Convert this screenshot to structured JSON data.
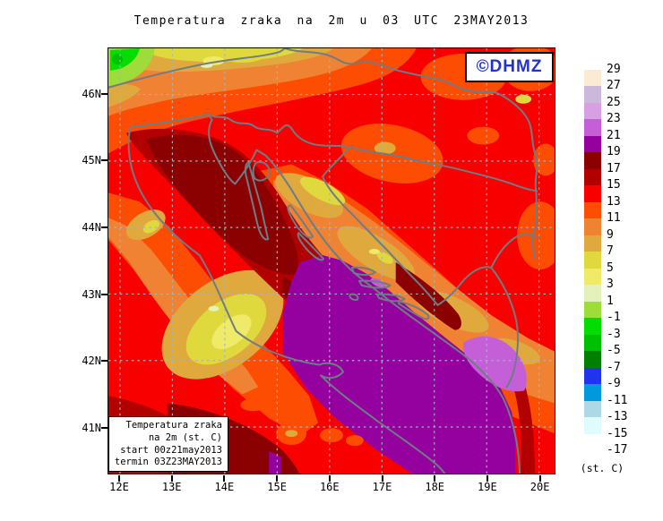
{
  "title": "Temperatura zraka na 2m u 03 UTC 23MAY2013",
  "copyright_badge": {
    "text": "©DHMZ",
    "text_color": "#2233cc"
  },
  "info_box": {
    "lines": [
      "Temperatura zraka",
      "na 2m (st. C)",
      "start 00z21may2013",
      "termin 03Z23MAY2013"
    ]
  },
  "axes": {
    "lat_tick_labels": [
      "46N",
      "45N",
      "44N",
      "43N",
      "42N",
      "41N"
    ],
    "lon_tick_labels": [
      "12E",
      "13E",
      "14E",
      "15E",
      "16E",
      "17E",
      "18E",
      "19E",
      "20E"
    ]
  },
  "legend": {
    "unit": "(st. C)",
    "entries": [
      {
        "label": "29",
        "box_color": "#fcebd4"
      },
      {
        "label": "27",
        "box_color": "#ccb8da"
      },
      {
        "label": "25",
        "box_color": "#d7a0e2"
      },
      {
        "label": "23",
        "box_color": "#c45fd8"
      },
      {
        "label": "21",
        "box_color": "#94019e"
      },
      {
        "label": "19",
        "box_color": "#8b0000"
      },
      {
        "label": "17",
        "box_color": "#b20000"
      },
      {
        "label": "15",
        "box_color": "#f80000"
      },
      {
        "label": "13",
        "box_color": "#fd4d02"
      },
      {
        "label": "11",
        "box_color": "#f08233"
      },
      {
        "label": "9",
        "box_color": "#dfa93d"
      },
      {
        "label": "7",
        "box_color": "#e0d93e"
      },
      {
        "label": "5",
        "box_color": "#efea67"
      },
      {
        "label": "3",
        "box_color": "#e4f1bb"
      },
      {
        "label": "1",
        "box_color": "#9edc3c"
      },
      {
        "label": "-1",
        "box_color": "#04dd04"
      },
      {
        "label": "-3",
        "box_color": "#00c004"
      },
      {
        "label": "-5",
        "box_color": "#008000"
      },
      {
        "label": "-7",
        "box_color": "#2233ee"
      },
      {
        "label": "-9",
        "box_color": "#0099dd"
      },
      {
        "label": "-11",
        "box_color": "#add8e6"
      },
      {
        "label": "-13",
        "box_color": "#e0fbfb"
      },
      {
        "label": "-15",
        "box_color": "#ffffff"
      },
      {
        "label": "-17",
        "box_color": null
      }
    ]
  },
  "map_style_colors": {
    "coastline_border": "#6e7d85",
    "gridline": "#9fb6c4",
    "frame": "#000000",
    "background": "#ffffff"
  }
}
